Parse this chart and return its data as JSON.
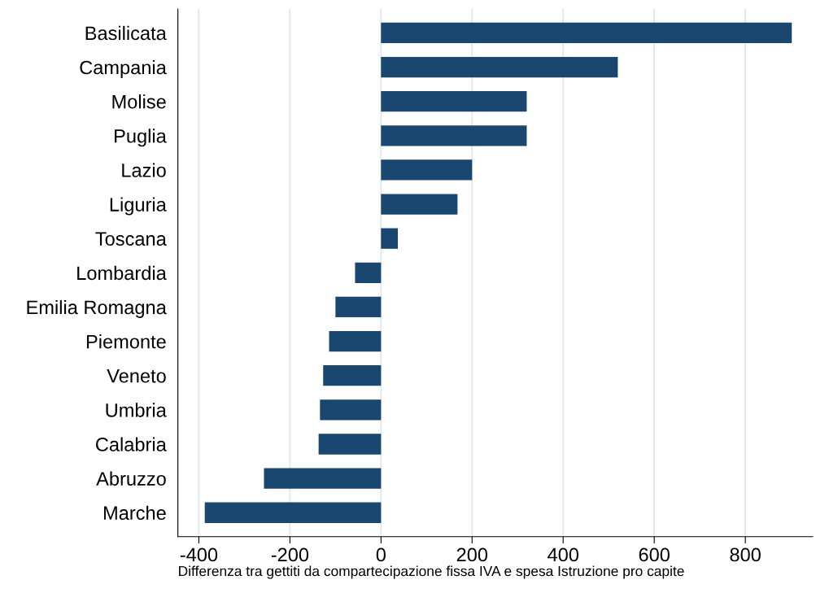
{
  "chart_data": {
    "type": "bar",
    "orientation": "horizontal",
    "xlabel": "Differenza tra gettiti da compartecipazione fissa IVA e spesa Istruzione pro capite",
    "categories": [
      "Basilicata",
      "Campania",
      "Molise",
      "Puglia",
      "Lazio",
      "Liguria",
      "Toscana",
      "Lombardia",
      "Emilia Romagna",
      "Piemonte",
      "Veneto",
      "Umbria",
      "Calabria",
      "Abruzzo",
      "Marche"
    ],
    "values": [
      902,
      520,
      320,
      320,
      200,
      168,
      37,
      -57,
      -100,
      -114,
      -127,
      -134,
      -137,
      -257,
      -387
    ],
    "color": "#1a476f",
    "xlim": [
      -446,
      948
    ],
    "xticks": [
      {
        "value": -400,
        "label": "-400"
      },
      {
        "value": -200,
        "label": "-200"
      },
      0,
      200,
      400,
      600,
      800
    ],
    "grid": "x",
    "legend": false
  }
}
